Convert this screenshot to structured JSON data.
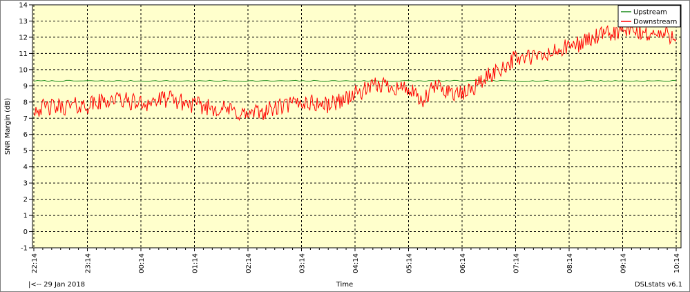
{
  "chart_data": {
    "type": "line",
    "xlabel": "Time",
    "ylabel": "SNR Margin (dB)",
    "ylim": [
      -1,
      14
    ],
    "yticks": [
      -1,
      0,
      1,
      2,
      3,
      4,
      5,
      6,
      7,
      8,
      9,
      10,
      11,
      12,
      13,
      14
    ],
    "xticks": [
      "22:14",
      "23:14",
      "00:14",
      "01:14",
      "02:14",
      "03:14",
      "04:14",
      "05:14",
      "06:14",
      "07:14",
      "08:14",
      "09:14",
      "10:14"
    ],
    "grid": true,
    "legend_position": "top-right",
    "date_label": "|<-- 29 Jan 2018",
    "brand": "DSLstats v6.1",
    "colors": {
      "plot_bg": "#ffffcc",
      "upstream": "#1a8a1a",
      "downstream": "#ff0000",
      "grid": "#000000"
    },
    "series": [
      {
        "name": "Upstream",
        "x": [
          "22:14",
          "23:14",
          "00:14",
          "01:14",
          "02:14",
          "03:14",
          "04:14",
          "05:14",
          "06:14",
          "07:14",
          "08:14",
          "09:14",
          "10:14"
        ],
        "values": [
          9.3,
          9.3,
          9.3,
          9.3,
          9.3,
          9.3,
          9.3,
          9.3,
          9.3,
          9.3,
          9.3,
          9.3,
          9.3
        ]
      },
      {
        "name": "Downstream",
        "x": [
          "22:14",
          "22:44",
          "23:14",
          "23:44",
          "00:14",
          "00:44",
          "01:14",
          "01:44",
          "02:14",
          "02:44",
          "03:14",
          "03:44",
          "04:14",
          "04:44",
          "05:14",
          "05:29",
          "05:44",
          "06:14",
          "06:44",
          "07:14",
          "07:44",
          "08:14",
          "08:44",
          "09:14",
          "09:44",
          "10:14"
        ],
        "values": [
          7.6,
          7.7,
          7.8,
          8.2,
          7.9,
          8.2,
          7.8,
          7.6,
          7.2,
          7.6,
          8.0,
          7.8,
          8.5,
          9.1,
          8.8,
          7.9,
          9.0,
          8.4,
          9.6,
          10.7,
          10.8,
          11.4,
          12.0,
          12.4,
          12.2,
          12.1
        ]
      }
    ]
  }
}
